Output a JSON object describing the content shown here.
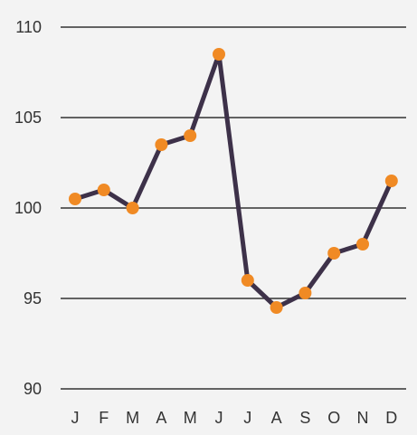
{
  "chart_data": {
    "type": "line",
    "categories": [
      "J",
      "F",
      "M",
      "A",
      "M",
      "J",
      "J",
      "A",
      "S",
      "O",
      "N",
      "D"
    ],
    "values": [
      100.5,
      101,
      100,
      103.5,
      104,
      108.5,
      96,
      94.5,
      95.3,
      97.5,
      98,
      101.5
    ],
    "title": "",
    "xlabel": "",
    "ylabel": "",
    "ylim": [
      90,
      110
    ],
    "yticks": [
      90,
      95,
      100,
      105,
      110
    ],
    "grid": "horizontal",
    "colors": {
      "line": "#3d3149",
      "marker": "#f08a24",
      "grid": "#333333",
      "text": "#333333",
      "background": "#f3f3f3"
    }
  }
}
